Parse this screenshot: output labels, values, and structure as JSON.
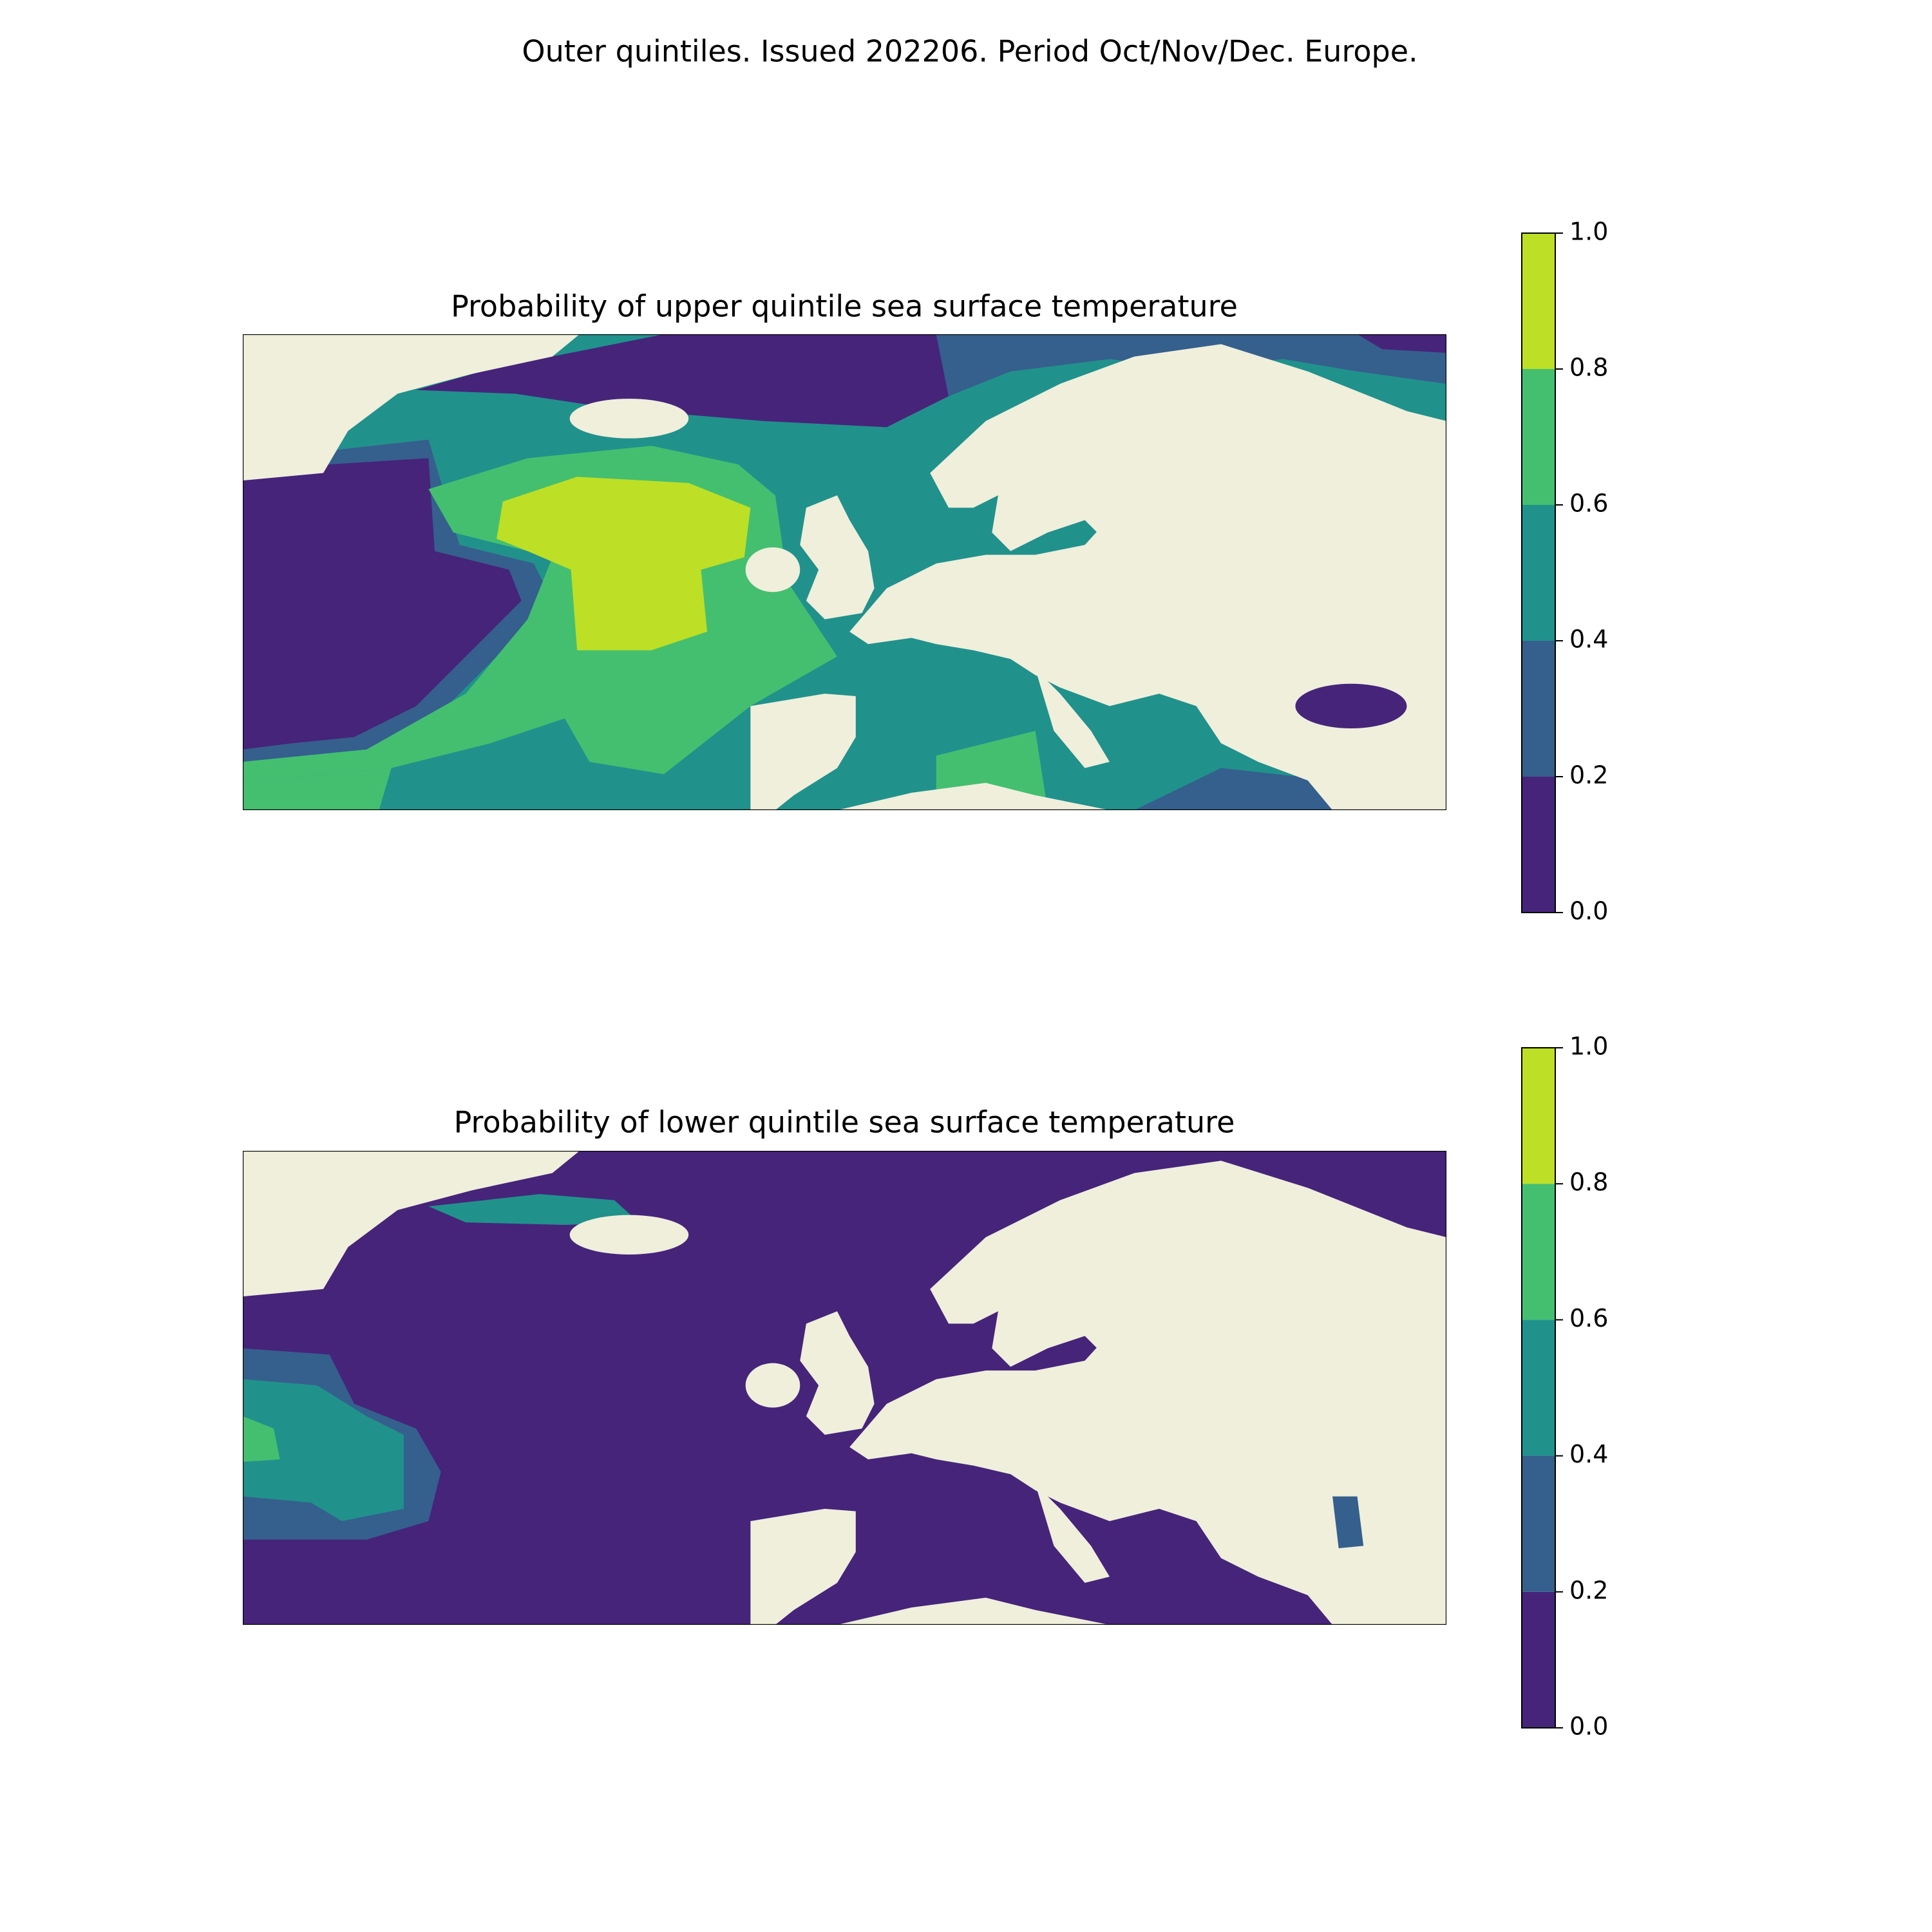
{
  "figure": {
    "title": "Outer quintiles. Issued 202206. Period Oct/Nov/Dec. Europe.",
    "maps": [
      {
        "title": "Probability of upper quintile sea surface temperature",
        "colorbar": {
          "ticks": [
            {
              "value": 0,
              "label": "0.0"
            },
            0.2,
            0.4,
            0.6,
            0.8,
            {
              "value": 1,
              "label": "1.0"
            }
          ],
          "colors": [
            "#46247a",
            "#355f8d",
            "#21918c",
            "#44bf70",
            "#bddf26"
          ]
        }
      },
      {
        "title": "Probability of lower quintile sea surface temperature",
        "colorbar": {
          "ticks": [
            {
              "value": 0,
              "label": "0.0"
            },
            0.2,
            0.4,
            0.6,
            0.8,
            {
              "value": 1,
              "label": "1.0"
            }
          ],
          "colors": [
            "#46247a",
            "#355f8d",
            "#21918c",
            "#44bf70",
            "#bddf26"
          ]
        }
      }
    ]
  }
}
